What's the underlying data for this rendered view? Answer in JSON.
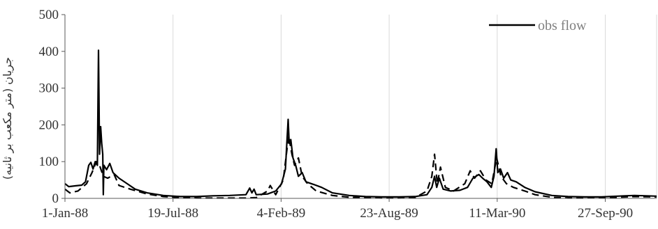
{
  "chart_data": {
    "type": "line",
    "title": "",
    "xlabel": "",
    "ylabel": "جریان (متر مکعب بر ثانیه)",
    "ylim": [
      0,
      500
    ],
    "yticks": [
      "0",
      "100",
      "200",
      "300",
      "400",
      "500"
    ],
    "xlim": [
      "1988-01-01",
      "1990-12-31"
    ],
    "xticks": [
      {
        "date": "1988-01-01",
        "label": "1-Jan-88"
      },
      {
        "date": "1988-07-19",
        "label": "19-Jul-88"
      },
      {
        "date": "1989-02-04",
        "label": "4-Feb-89"
      },
      {
        "date": "1989-08-23",
        "label": "23-Aug-89"
      },
      {
        "date": "1990-03-11",
        "label": "11-Mar-90"
      },
      {
        "date": "1990-09-27",
        "label": "27-Sep-90"
      }
    ],
    "legend": {
      "position": "top-right",
      "entries": [
        "obs flow"
      ]
    },
    "grid": {
      "vertical": true,
      "horizontal": false
    },
    "series": [
      {
        "name": "obs flow",
        "style": "solid",
        "color": "#000000",
        "points": [
          [
            "1988-01-01",
            40
          ],
          [
            "1988-01-08",
            32
          ],
          [
            "1988-01-20",
            34
          ],
          [
            "1988-02-01",
            36
          ],
          [
            "1988-02-08",
            45
          ],
          [
            "1988-02-14",
            90
          ],
          [
            "1988-02-18",
            98
          ],
          [
            "1988-02-22",
            80
          ],
          [
            "1988-02-26",
            100
          ],
          [
            "1988-03-01",
            90
          ],
          [
            "1988-03-03",
            403
          ],
          [
            "1988-03-05",
            120
          ],
          [
            "1988-03-07",
            195
          ],
          [
            "1988-03-09",
            150
          ],
          [
            "1988-03-11",
            120
          ],
          [
            "1988-03-12",
            10
          ],
          [
            "1988-03-13",
            90
          ],
          [
            "1988-03-18",
            78
          ],
          [
            "1988-03-24",
            95
          ],
          [
            "1988-03-30",
            70
          ],
          [
            "1988-04-10",
            55
          ],
          [
            "1988-04-25",
            40
          ],
          [
            "1988-05-10",
            25
          ],
          [
            "1988-06-01",
            15
          ],
          [
            "1988-07-01",
            8
          ],
          [
            "1988-08-01",
            5
          ],
          [
            "1988-09-01",
            5
          ],
          [
            "1988-10-01",
            7
          ],
          [
            "1988-11-01",
            8
          ],
          [
            "1988-12-01",
            10
          ],
          [
            "1988-12-08",
            28
          ],
          [
            "1988-12-12",
            15
          ],
          [
            "1988-12-16",
            25
          ],
          [
            "1988-12-20",
            10
          ],
          [
            "1989-01-10",
            12
          ],
          [
            "1989-01-25",
            20
          ],
          [
            "1989-02-05",
            40
          ],
          [
            "1989-02-12",
            80
          ],
          [
            "1989-02-17",
            215
          ],
          [
            "1989-02-19",
            150
          ],
          [
            "1989-02-22",
            160
          ],
          [
            "1989-02-26",
            110
          ],
          [
            "1989-03-03",
            90
          ],
          [
            "1989-03-08",
            60
          ],
          [
            "1989-03-15",
            70
          ],
          [
            "1989-03-22",
            45
          ],
          [
            "1989-04-05",
            38
          ],
          [
            "1989-04-20",
            30
          ],
          [
            "1989-05-10",
            15
          ],
          [
            "1989-06-10",
            8
          ],
          [
            "1989-07-10",
            5
          ],
          [
            "1989-08-10",
            4
          ],
          [
            "1989-09-10",
            4
          ],
          [
            "1989-10-10",
            5
          ],
          [
            "1989-11-01",
            10
          ],
          [
            "1989-11-10",
            30
          ],
          [
            "1989-11-15",
            60
          ],
          [
            "1989-11-19",
            30
          ],
          [
            "1989-11-24",
            55
          ],
          [
            "1989-12-01",
            25
          ],
          [
            "1989-12-15",
            20
          ],
          [
            "1990-01-01",
            22
          ],
          [
            "1990-01-15",
            30
          ],
          [
            "1990-01-25",
            55
          ],
          [
            "1990-02-05",
            65
          ],
          [
            "1990-02-12",
            55
          ],
          [
            "1990-02-20",
            45
          ],
          [
            "1990-02-28",
            30
          ],
          [
            "1990-03-05",
            60
          ],
          [
            "1990-03-09",
            135
          ],
          [
            "1990-03-12",
            70
          ],
          [
            "1990-03-17",
            80
          ],
          [
            "1990-03-23",
            55
          ],
          [
            "1990-03-30",
            70
          ],
          [
            "1990-04-05",
            50
          ],
          [
            "1990-04-15",
            45
          ],
          [
            "1990-05-01",
            30
          ],
          [
            "1990-05-20",
            18
          ],
          [
            "1990-06-20",
            8
          ],
          [
            "1990-07-20",
            5
          ],
          [
            "1990-08-20",
            4
          ],
          [
            "1990-09-20",
            4
          ],
          [
            "1990-10-20",
            6
          ],
          [
            "1990-11-20",
            8
          ],
          [
            "1990-12-31",
            6
          ]
        ]
      },
      {
        "style": "dashed",
        "color": "#000000",
        "points": [
          [
            "1988-01-01",
            25
          ],
          [
            "1988-01-10",
            15
          ],
          [
            "1988-01-25",
            20
          ],
          [
            "1988-02-10",
            40
          ],
          [
            "1988-02-20",
            70
          ],
          [
            "1988-02-28",
            100
          ],
          [
            "1988-03-05",
            90
          ],
          [
            "1988-03-12",
            60
          ],
          [
            "1988-03-20",
            55
          ],
          [
            "1988-04-01",
            65
          ],
          [
            "1988-04-10",
            35
          ],
          [
            "1988-05-01",
            25
          ],
          [
            "1988-06-01",
            12
          ],
          [
            "1988-07-01",
            5
          ],
          [
            "1988-08-01",
            2
          ],
          [
            "1988-09-01",
            1
          ],
          [
            "1988-10-01",
            1
          ],
          [
            "1988-11-01",
            1
          ],
          [
            "1988-12-01",
            1
          ],
          [
            "1988-12-20",
            2
          ],
          [
            "1989-01-10",
            20
          ],
          [
            "1989-01-15",
            35
          ],
          [
            "1989-01-25",
            10
          ],
          [
            "1989-02-08",
            50
          ],
          [
            "1989-02-18",
            170
          ],
          [
            "1989-02-24",
            120
          ],
          [
            "1989-03-01",
            90
          ],
          [
            "1989-03-08",
            110
          ],
          [
            "1989-03-15",
            60
          ],
          [
            "1989-03-25",
            40
          ],
          [
            "1989-04-10",
            20
          ],
          [
            "1989-05-10",
            8
          ],
          [
            "1989-06-10",
            3
          ],
          [
            "1989-07-10",
            2
          ],
          [
            "1989-08-10",
            1
          ],
          [
            "1989-09-10",
            1
          ],
          [
            "1989-10-10",
            2
          ],
          [
            "1989-11-01",
            20
          ],
          [
            "1989-11-10",
            60
          ],
          [
            "1989-11-15",
            120
          ],
          [
            "1989-11-20",
            40
          ],
          [
            "1989-11-26",
            85
          ],
          [
            "1989-12-05",
            30
          ],
          [
            "1989-12-20",
            20
          ],
          [
            "1990-01-10",
            40
          ],
          [
            "1990-01-20",
            75
          ],
          [
            "1990-01-28",
            55
          ],
          [
            "1990-02-08",
            75
          ],
          [
            "1990-02-18",
            50
          ],
          [
            "1990-03-01",
            40
          ],
          [
            "1990-03-10",
            110
          ],
          [
            "1990-03-18",
            60
          ],
          [
            "1990-03-28",
            40
          ],
          [
            "1990-04-10",
            30
          ],
          [
            "1990-05-01",
            20
          ],
          [
            "1990-05-20",
            10
          ],
          [
            "1990-06-20",
            3
          ],
          [
            "1990-07-20",
            1
          ],
          [
            "1990-08-20",
            1
          ],
          [
            "1990-09-20",
            2
          ],
          [
            "1990-10-20",
            3
          ],
          [
            "1990-11-20",
            5
          ],
          [
            "1990-12-31",
            4
          ]
        ]
      }
    ]
  }
}
